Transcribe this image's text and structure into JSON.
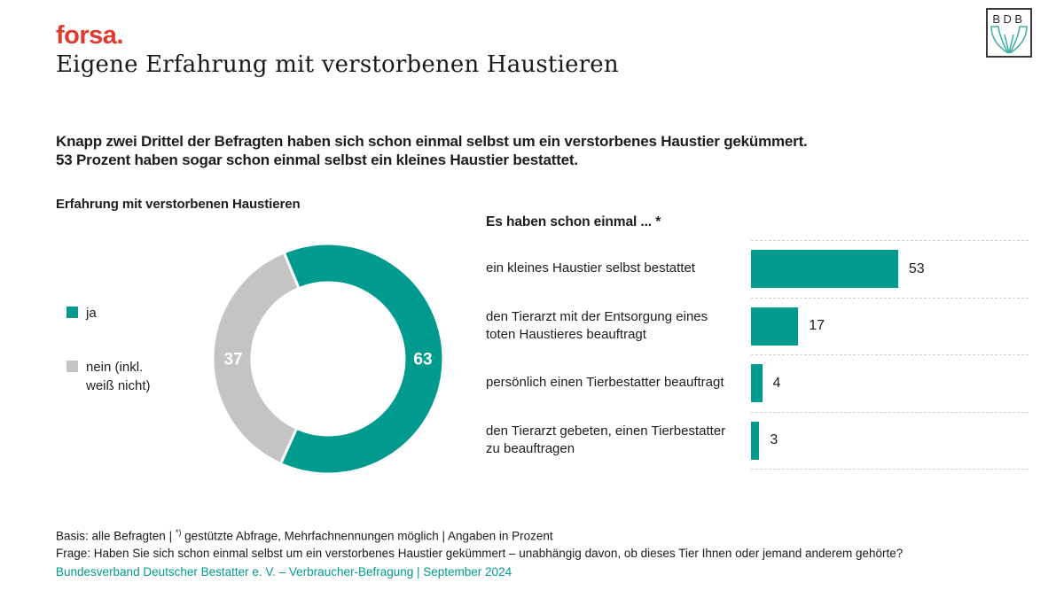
{
  "brand": {
    "logo": "forsa.",
    "title": "Eigene Erfahrung mit verstorbenen Haustieren",
    "bdb": "BDB"
  },
  "intro": {
    "line1": "Knapp zwei Drittel der Befragten haben sich schon einmal selbst um ein verstorbenes Haustier gekümmert.",
    "line2": "53 Prozent haben sogar schon einmal selbst ein kleines Haustier bestattet."
  },
  "chart_data": [
    {
      "type": "pie",
      "donut": true,
      "title": "Erfahrung mit verstorbenen Haustieren",
      "legend_position": "left",
      "slices": [
        {
          "label": "ja",
          "value": 63,
          "color": "#009a8e"
        },
        {
          "label": "nein (inkl. weiß nicht)",
          "value": 37,
          "color": "#c4c4c4"
        }
      ]
    },
    {
      "type": "bar",
      "orientation": "horizontal",
      "title": "Es haben schon einmal ... *",
      "categories": [
        "ein kleines Haustier selbst bestattet",
        "den Tierarzt mit der Entsorgung eines toten Haustieres beauftragt",
        "persönlich einen Tierbestatter beauftragt",
        "den Tierarzt gebeten, einen Tierbestatter zu beauftragen"
      ],
      "values": [
        53,
        17,
        4,
        3
      ],
      "xlim": [
        0,
        100
      ],
      "bar_color": "#009a8e",
      "grid": "dashed-row-separators"
    }
  ],
  "footer": {
    "basis_prefix": "Basis: alle Befragten | ",
    "basis_sup": "*)",
    "basis_rest": " gestützte Abfrage, Mehrfachnennungen möglich | Angaben in Prozent",
    "frage": "Frage: Haben Sie sich schon einmal selbst um ein verstorbenes Haustier gekümmert – unabhängig davon, ob dieses Tier Ihnen oder jemand anderem gehörte?",
    "source": "Bundesverband Deutscher Bestatter e. V. – Verbraucher-Befragung | September 2024"
  },
  "colors": {
    "accent_teal": "#009a8e",
    "slice_gray": "#c4c4c4",
    "forsa_red": "#e03a2e",
    "text": "#1d1d1b",
    "dash_line": "#cfcfcf"
  }
}
